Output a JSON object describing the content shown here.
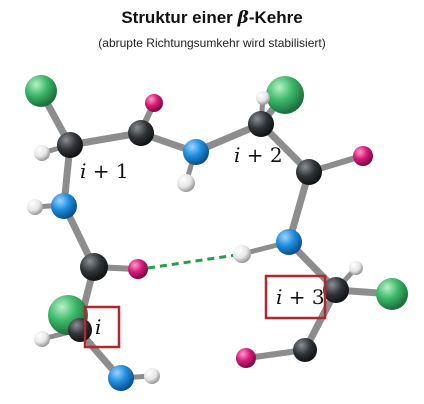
{
  "title": {
    "prefix": "Struktur einer ",
    "greek": "β",
    "suffix": "-Kehre"
  },
  "subtitle": "(abrupte Richtungsumkehr wird stabilisiert)",
  "residue_labels": {
    "i": "i",
    "i_plus_1": {
      "var": "i",
      "rest": " + 1"
    },
    "i_plus_2": {
      "var": "i",
      "rest": " + 2"
    },
    "i_plus_3": {
      "var": "i",
      "rest": " + 3"
    }
  },
  "atom_colors": {
    "carbon": "#2f3337",
    "nitrogen": "#1f8fe0",
    "oxygen": "#d81b7a",
    "hydrogen": "#f2f2f2",
    "side_chain": "#3cb86a",
    "hbond": "#2a9d48",
    "box": "#b3262d"
  }
}
